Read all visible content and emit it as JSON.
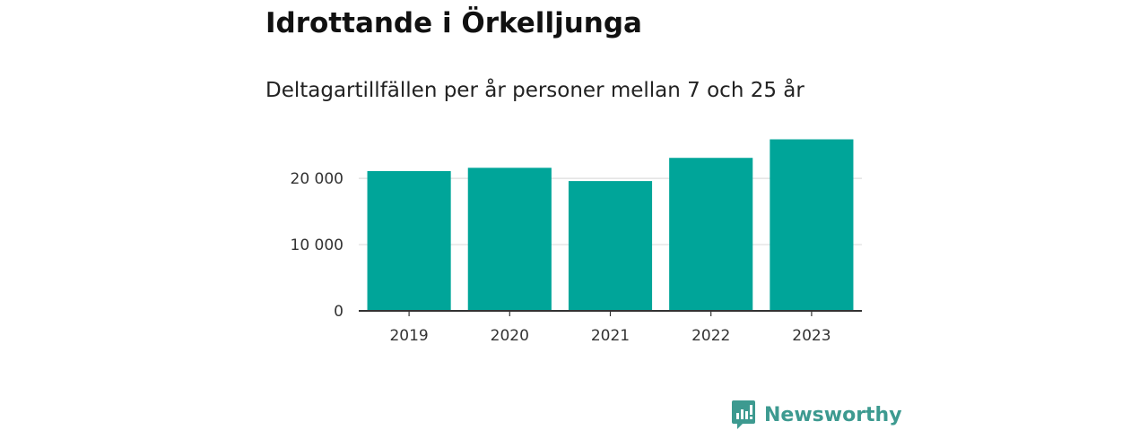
{
  "header": {
    "title": "Idrottande i Örkelljunga",
    "subtitle": "Deltagartillfällen per år personer mellan 7 och 25 år"
  },
  "chart_data": {
    "type": "bar",
    "title": "Idrottande i Örkelljunga",
    "subtitle": "Deltagartillfällen per år personer mellan 7 och 25 år",
    "categories": [
      "2019",
      "2020",
      "2021",
      "2022",
      "2023"
    ],
    "values": [
      21100,
      21600,
      19600,
      23100,
      25900
    ],
    "xlabel": "",
    "ylabel": "",
    "ylim": [
      0,
      28000
    ],
    "yticks": [
      0,
      10000,
      20000
    ],
    "ytick_labels": [
      "0",
      "10 000",
      "20 000"
    ],
    "grid": true,
    "legend": "none",
    "bar_color": "#00a599"
  },
  "brand": {
    "name": "Newsworthy",
    "icon": "newsworthy-logo-icon",
    "color": "#3d9a90"
  }
}
